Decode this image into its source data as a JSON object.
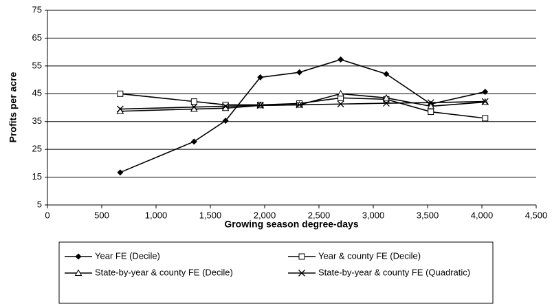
{
  "chart_data": {
    "type": "line",
    "x_label": "Growing season degree-days",
    "y_label": "Profits per acre",
    "xlim": [
      0,
      4500
    ],
    "xticks": [
      0,
      500,
      {
        "value": 1000,
        "label": "1,000"
      },
      {
        "value": 1500,
        "label": "1,500"
      },
      {
        "value": 2000,
        "label": "2,000"
      },
      {
        "value": 2500,
        "label": "2,500"
      },
      {
        "value": 3000,
        "label": "3,000"
      },
      {
        "value": 3500,
        "label": "3,500"
      },
      {
        "value": 4000,
        "label": "4,000"
      },
      {
        "value": 4500,
        "label": "4,500"
      }
    ],
    "ylim": [
      5,
      75
    ],
    "yticks": [
      5,
      15,
      25,
      35,
      45,
      55,
      65,
      75
    ],
    "grid": true,
    "legend": "bottom",
    "x": [
      670,
      1350,
      1640,
      1960,
      2320,
      2700,
      3120,
      3530,
      4030
    ],
    "series": [
      {
        "name": "Year FE (Decile)",
        "color": "#000000",
        "marker": "diamond",
        "values": [
          16.7,
          27.8,
          35.3,
          50.9,
          52.7,
          57.3,
          52.1,
          41.3,
          45.7
        ]
      },
      {
        "name": "Year & county FE (Decile)",
        "color": "#000000",
        "marker": "square",
        "values": [
          45.0,
          42.2,
          41.0,
          41.0,
          41.5,
          43.5,
          43.0,
          38.5,
          36.2
        ]
      },
      {
        "name": "State-by-year & county FE (Decile)",
        "color": "#000000",
        "marker": "triangle",
        "values": [
          38.7,
          39.5,
          39.8,
          40.8,
          41.0,
          45.0,
          43.5,
          40.5,
          42.0
        ]
      },
      {
        "name": "State-by-year & county FE (Quadratic)",
        "color": "#000000",
        "marker": "cross",
        "values": [
          39.5,
          40.2,
          40.5,
          40.8,
          41.0,
          41.3,
          41.6,
          41.8,
          42.2
        ]
      }
    ]
  }
}
